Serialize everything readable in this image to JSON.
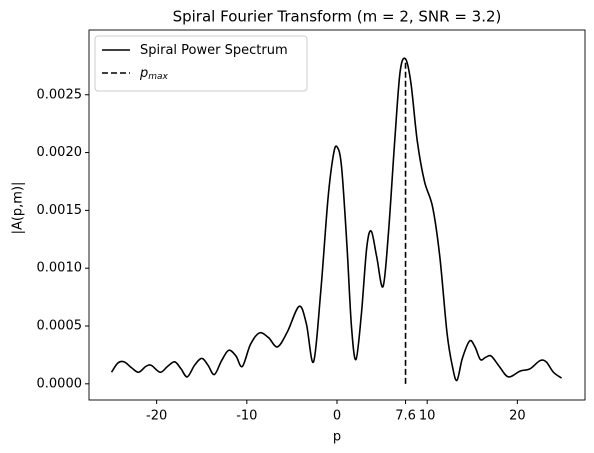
{
  "chart_data": {
    "type": "line",
    "title": "Spiral Fourier Transform (m = 2, SNR = 3.2)",
    "xlabel": "p",
    "ylabel": "|A(p,m)|",
    "xlim": [
      -27.5,
      27.5
    ],
    "xticks": [
      -20,
      -10,
      0,
      7.6,
      10,
      20
    ],
    "ylim": [
      -0.00014,
      0.00306
    ],
    "yticks": [
      {
        "value": 0,
        "label": "0.0000"
      },
      {
        "value": 0.0005,
        "label": "0.0005"
      },
      {
        "value": 0.001,
        "label": "0.0010"
      },
      {
        "value": 0.0015,
        "label": "0.0015"
      },
      {
        "value": 0.002,
        "label": "0.0020"
      },
      {
        "value": 0.0025,
        "label": "0.0025"
      }
    ],
    "legend": "upper left",
    "series": [
      {
        "name": "Spiral Power Spectrum",
        "color": "#000000",
        "dash": "solid",
        "x": [
          -25,
          -24.3,
          -23.6,
          -22.8,
          -22,
          -21.2,
          -20.6,
          -19.6,
          -18.8,
          -18,
          -17.3,
          -16.6,
          -15.8,
          -15,
          -14.3,
          -13.6,
          -12.8,
          -12,
          -11.2,
          -10.5,
          -9.6,
          -8.6,
          -7.6,
          -6.6,
          -5.5,
          -4.2,
          -3.4,
          -2.6,
          -1.8,
          -1,
          -0.4,
          0,
          0.5,
          1.1,
          1.6,
          2.1,
          2.7,
          3.3,
          3.8,
          4.4,
          5.1,
          5.7,
          6.4,
          7,
          7.6,
          8.2,
          8.9,
          9.7,
          10.6,
          11.4,
          12.2,
          12.8,
          13.3,
          13.9,
          14.7,
          15.3,
          15.9,
          16.5,
          17.1,
          18,
          19,
          20.3,
          21.4,
          22.5,
          23.2,
          24,
          24.9
        ],
        "values": [
          0.0001,
          0.00018,
          0.00019,
          0.00014,
          0.0001,
          0.00015,
          0.00016,
          0.0001,
          0.00015,
          0.00019,
          0.00013,
          6e-05,
          0.00016,
          0.00022,
          0.00016,
          8e-05,
          0.0002,
          0.00029,
          0.00024,
          0.00015,
          0.00034,
          0.00044,
          0.0004,
          0.00032,
          0.00045,
          0.00067,
          0.00052,
          0.00019,
          0.0008,
          0.0016,
          0.00198,
          0.00205,
          0.00188,
          0.0012,
          0.0005,
          0.00021,
          0.0006,
          0.00118,
          0.00132,
          0.0011,
          0.00084,
          0.0013,
          0.0021,
          0.0027,
          0.00281,
          0.0026,
          0.0021,
          0.00175,
          0.00153,
          0.0011,
          0.00044,
          0.00015,
          3e-05,
          0.00022,
          0.00037,
          0.00032,
          0.00021,
          0.00023,
          0.00024,
          0.00015,
          6e-05,
          0.00011,
          0.00013,
          0.0002,
          0.00019,
          0.0001,
          5e-05
        ]
      },
      {
        "name": "p",
        "subscript": "max",
        "color": "#000000",
        "dash": "dashed",
        "x": [
          7.6,
          7.6
        ],
        "values": [
          0,
          0.00281
        ]
      }
    ]
  }
}
